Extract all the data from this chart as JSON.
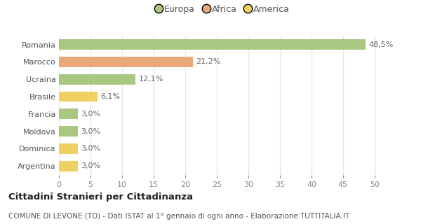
{
  "categories": [
    "Romania",
    "Marocco",
    "Ucraina",
    "Brasile",
    "Francia",
    "Moldova",
    "Dominica",
    "Argentina"
  ],
  "values": [
    48.5,
    21.2,
    12.1,
    6.1,
    3.0,
    3.0,
    3.0,
    3.0
  ],
  "labels": [
    "48,5%",
    "21,2%",
    "12,1%",
    "6,1%",
    "3,0%",
    "3,0%",
    "3,0%",
    "3,0%"
  ],
  "colors": [
    "#a8c882",
    "#e8a878",
    "#a8c882",
    "#f0d060",
    "#a8c882",
    "#a8c882",
    "#f0d060",
    "#f0d060"
  ],
  "legend_entries": [
    {
      "label": "Europa",
      "color": "#a8c882"
    },
    {
      "label": "Africa",
      "color": "#e8a878"
    },
    {
      "label": "America",
      "color": "#f0d060"
    }
  ],
  "xlim": [
    0,
    52
  ],
  "xticks": [
    0,
    5,
    10,
    15,
    20,
    25,
    30,
    35,
    40,
    45,
    50
  ],
  "title": "Cittadini Stranieri per Cittadinanza",
  "subtitle": "COMUNE DI LEVONE (TO) - Dati ISTAT al 1° gennaio di ogni anno - Elaborazione TUTTITALIA.IT",
  "background_color": "#ffffff",
  "grid_color": "#e8e8e8",
  "bar_height": 0.6,
  "title_fontsize": 9.5,
  "subtitle_fontsize": 7.5,
  "tick_fontsize": 8,
  "label_fontsize": 8,
  "legend_fontsize": 9
}
